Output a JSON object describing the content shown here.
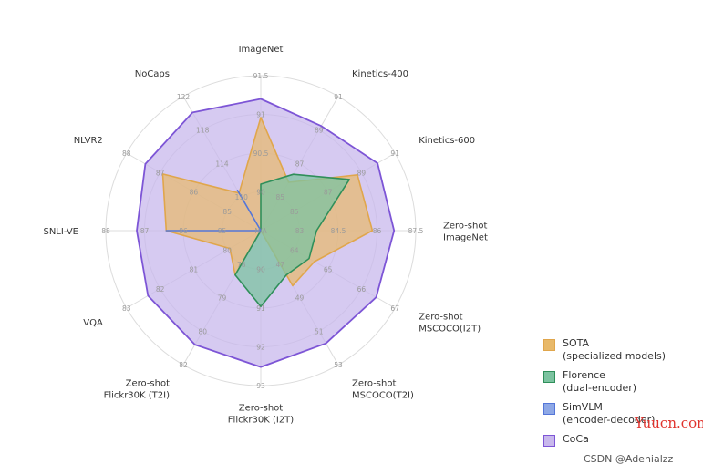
{
  "colors": {
    "SOTA": "#e8b96a",
    "Florence": "#7cc3a0",
    "SimVLM": "#8ea8e6",
    "CoCa": "#c8b8ec",
    "CoCa_stroke": "#7d55d6",
    "Florence_stroke": "#2f8f5a",
    "SimVLM_stroke": "#5476d8",
    "SOTA_stroke": "#e0a64c"
  },
  "chart_data": {
    "type": "radar",
    "axes": [
      {
        "label": "ImageNet",
        "ticks": [
          "90",
          "90.5",
          "91",
          "91.5"
        ]
      },
      {
        "label": "Kinetics-400",
        "ticks": [
          "85",
          "87",
          "89",
          "91"
        ]
      },
      {
        "label": "Kinetics-600",
        "ticks": [
          "85",
          "87",
          "89",
          "91"
        ]
      },
      {
        "label": "Zero-shot\nImageNet",
        "ticks": [
          "83",
          "84.5",
          "86",
          "87.5"
        ]
      },
      {
        "label": "Zero-shot\nMSCOCO(I2T)",
        "ticks": [
          "64",
          "65",
          "66",
          "67"
        ]
      },
      {
        "label": "Zero-shot\nMSCOCO(T2I)",
        "ticks": [
          "47",
          "49",
          "51",
          "53"
        ]
      },
      {
        "label": "Zero-shot\nFlickr30K (I2T)",
        "ticks": [
          "90",
          "91",
          "92",
          "93"
        ]
      },
      {
        "label": "Zero-shot\nFlickr30K (T2I)",
        "ticks": [
          "78",
          "79",
          "80",
          "82"
        ]
      },
      {
        "label": "VQA",
        "ticks": [
          "80",
          "81",
          "82",
          "83"
        ]
      },
      {
        "label": "SNLI-VE",
        "ticks": [
          "85",
          "86",
          "87",
          "88"
        ]
      },
      {
        "label": "NLVR2",
        "ticks": [
          "85",
          "86",
          "87",
          "88"
        ]
      },
      {
        "label": "NoCaps",
        "ticks": [
          "110",
          "114",
          "118",
          "122"
        ]
      }
    ],
    "center_label": "N/A",
    "series": [
      {
        "name": "CoCa",
        "values": [
          0.85,
          0.78,
          0.87,
          0.86,
          0.86,
          0.84,
          0.88,
          0.85,
          0.84,
          0.8,
          0.86,
          0.88
        ]
      },
      {
        "name": "SOTA\n(specialized models)",
        "values": [
          0.73,
          0.36,
          0.72,
          0.72,
          0.4,
          0.41,
          0.0,
          0.33,
          0.23,
          0.61,
          0.73,
          0.28
        ]
      },
      {
        "name": "Florence\n(dual-encoder)",
        "values": [
          0.3,
          0.42,
          0.66,
          0.36,
          0.36,
          0.33,
          0.49,
          0.33,
          0.0,
          0.0,
          0.0,
          0.0
        ]
      },
      {
        "name": "SimVLM\n(encoder-decoder)",
        "values": [
          0.0,
          0.0,
          0.0,
          0.0,
          0.0,
          0.0,
          0.0,
          0.0,
          0.0,
          0.61,
          0.0,
          0.3
        ]
      }
    ]
  },
  "legend": [
    {
      "key": "SOTA",
      "label": "SOTA\n(specialized models)"
    },
    {
      "key": "Florence",
      "label": "Florence\n(dual-encoder)"
    },
    {
      "key": "SimVLM",
      "label": "SimVLM\n(encoder-decoder)"
    },
    {
      "key": "CoCa",
      "label": "CoCa"
    }
  ],
  "watermarks": {
    "site": "Yuucn.com",
    "csdn": "CSDN @Adenialzz"
  }
}
